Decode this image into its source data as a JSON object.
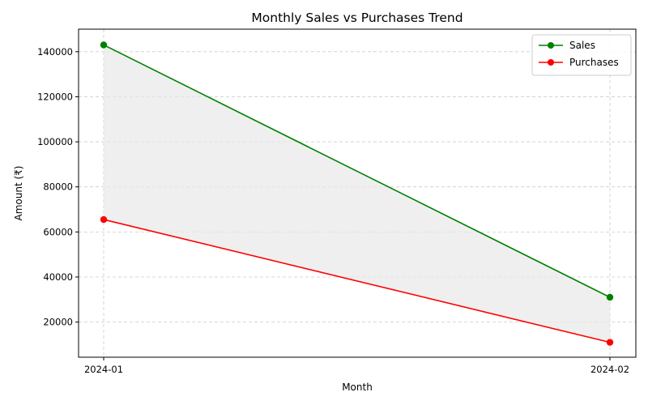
{
  "chart_data": {
    "type": "line",
    "title": "Monthly Sales vs Purchases Trend",
    "xlabel": "Month",
    "ylabel": "Amount (₹)",
    "categories": [
      "2024-01",
      "2024-02"
    ],
    "yticks": [
      20000,
      40000,
      60000,
      80000,
      100000,
      120000,
      140000
    ],
    "ylim": [
      4400,
      150000
    ],
    "grid": true,
    "legend_position": "top-right",
    "fill_between": true,
    "fill_color": "#e8e8e8",
    "series": [
      {
        "name": "Sales",
        "color": "#008000",
        "values": [
          143000,
          31000
        ]
      },
      {
        "name": "Purchases",
        "color": "#ff0000",
        "values": [
          65500,
          11000
        ]
      }
    ]
  }
}
